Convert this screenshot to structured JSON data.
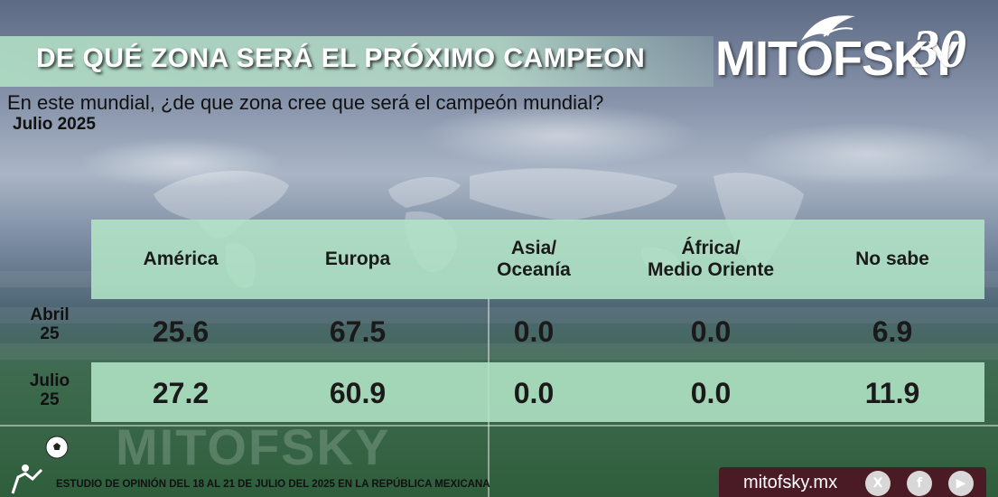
{
  "header": {
    "title": "DE QUÉ ZONA SERÁ EL PRÓXIMO CAMPEON",
    "logo_text": "MITOFSKY",
    "logo_number": "30"
  },
  "question": "En este mundial, ¿de que zona cree que será el campeón mundial?",
  "period": "Julio 2025",
  "chart_data": {
    "type": "table",
    "columns": [
      "América",
      "Europa",
      "Asia/\nOceanía",
      "África/\nMedio Oriente",
      "No sabe"
    ],
    "rows": [
      {
        "label": "Abril\n25",
        "values": [
          "25.6",
          "67.5",
          "0.0",
          "0.0",
          "6.9"
        ]
      },
      {
        "label": "Julio\n25",
        "values": [
          "27.2",
          "60.9",
          "0.0",
          "0.0",
          "11.9"
        ]
      }
    ]
  },
  "footer": {
    "note": "ESTUDIO DE OPINIÓN DEL 18 AL 21 DE JULIO DEL 2025 EN LA REPÚBLICA MEXICANA",
    "site": "mitofsky.mx",
    "watermark": "MITOFSKY",
    "social_icons": [
      "x-icon",
      "facebook-icon",
      "youtube-icon"
    ]
  }
}
